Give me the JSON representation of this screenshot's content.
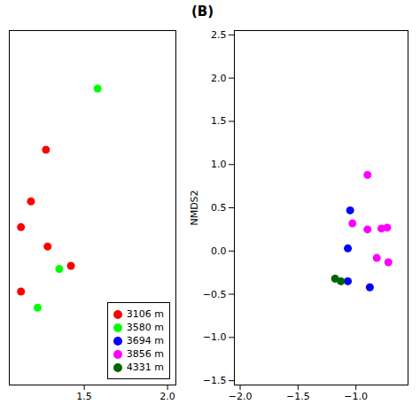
{
  "chart_data": [
    {
      "type": "scatter",
      "series": [
        {
          "name": "3106 m",
          "color": "#ff0000",
          "values": [
            [
              1.27,
              0.68
            ],
            [
              1.18,
              0.52
            ],
            [
              1.12,
              0.44
            ],
            [
              1.28,
              0.38
            ],
            [
              1.42,
              0.32
            ],
            [
              1.12,
              0.24
            ]
          ]
        },
        {
          "name": "3580 m",
          "color": "#00ff00",
          "values": [
            [
              1.58,
              0.87
            ],
            [
              1.35,
              0.31
            ],
            [
              1.22,
              0.19
            ]
          ]
        }
      ],
      "xlim": [
        1.05,
        2.05
      ],
      "ylim": [
        -0.05,
        1.05
      ],
      "xticks": [
        1.5,
        {
          "value": 2.0,
          "label": "2.0"
        }
      ],
      "yticks": [],
      "tick_labels": "x",
      "grid": false,
      "legend": "lower right"
    },
    {
      "type": "scatter",
      "series": [
        {
          "name": "3694 m",
          "color": "#0000ff",
          "values": [
            [
              -1.05,
              0.47
            ],
            [
              -1.07,
              0.03
            ],
            [
              -1.07,
              -0.35
            ],
            [
              -0.88,
              -0.42
            ]
          ]
        },
        {
          "name": "3856 m",
          "color": "#ff00ff",
          "values": [
            [
              -0.9,
              0.88
            ],
            [
              -1.03,
              0.32
            ],
            [
              -0.9,
              0.25
            ],
            [
              -0.78,
              0.26
            ],
            [
              -0.82,
              -0.08
            ],
            [
              -0.72,
              -0.13
            ],
            [
              -0.73,
              0.27
            ]
          ]
        },
        {
          "name": "4331 m",
          "color": "#006400",
          "values": [
            [
              -1.18,
              -0.32
            ],
            [
              -1.13,
              -0.35
            ]
          ]
        }
      ],
      "xlim": [
        -2.05,
        -0.55
      ],
      "ylim": [
        -1.55,
        2.55
      ],
      "xticks": [
        {
          "value": -2.0,
          "label": "−2.0"
        },
        {
          "value": -1.5,
          "label": "−1.5"
        },
        {
          "value": -1.0,
          "label": "−1.0"
        }
      ],
      "yticks": [
        {
          "value": -1.5,
          "label": "−1.5"
        },
        {
          "value": -1.0,
          "label": "−1.0"
        },
        {
          "value": -0.5,
          "label": "−0.5"
        },
        {
          "value": 0.0,
          "label": "0.0"
        },
        0.5,
        {
          "value": 1.0,
          "label": "1.0"
        },
        1.5,
        {
          "value": 2.0,
          "label": "2.0"
        },
        2.5
      ],
      "ylabel": "NMDS2",
      "grid": false,
      "annotations": [
        "(B)"
      ]
    }
  ]
}
